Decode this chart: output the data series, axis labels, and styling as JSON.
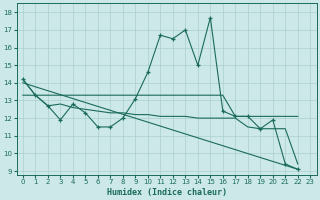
{
  "xlabel": "Humidex (Indice chaleur)",
  "xlim": [
    -0.5,
    23.5
  ],
  "ylim": [
    8.8,
    18.5
  ],
  "yticks": [
    9,
    10,
    11,
    12,
    13,
    14,
    15,
    16,
    17,
    18
  ],
  "xticks": [
    0,
    1,
    2,
    3,
    4,
    5,
    6,
    7,
    8,
    9,
    10,
    11,
    12,
    13,
    14,
    15,
    16,
    17,
    18,
    19,
    20,
    21,
    22,
    23
  ],
  "bg_color": "#cce8e8",
  "grid_color": "#aacfcf",
  "line_color": "#1a6b5a",
  "line1_x": [
    0,
    1,
    2,
    3,
    4,
    5,
    6,
    7,
    8,
    9,
    10,
    11,
    12,
    13,
    14,
    15,
    16,
    17,
    18,
    19,
    20,
    21,
    22
  ],
  "line1_y": [
    14.2,
    13.3,
    12.7,
    11.9,
    12.8,
    12.3,
    11.5,
    11.5,
    12.0,
    13.1,
    14.6,
    16.7,
    16.5,
    17.0,
    15.0,
    17.7,
    12.4,
    12.1,
    12.1,
    11.4,
    11.9,
    9.4,
    9.1
  ],
  "line2_x": [
    0,
    1,
    2,
    3,
    4,
    5,
    6,
    7,
    8,
    9,
    10,
    11,
    12,
    13,
    14,
    15,
    16,
    17,
    18,
    19,
    20,
    21,
    22
  ],
  "line2_y": [
    14.2,
    13.3,
    13.3,
    13.3,
    13.3,
    13.3,
    13.3,
    13.3,
    13.3,
    13.3,
    13.3,
    13.3,
    13.3,
    13.3,
    13.3,
    13.3,
    13.3,
    12.1,
    12.1,
    12.1,
    12.1,
    12.1,
    12.1
  ],
  "line3_x": [
    0,
    1,
    2,
    3,
    4,
    5,
    6,
    7,
    8,
    9,
    10,
    11,
    12,
    13,
    14,
    15,
    16,
    17,
    18,
    19,
    20,
    21,
    22
  ],
  "line3_y": [
    13.3,
    13.3,
    12.7,
    12.8,
    12.6,
    12.5,
    12.4,
    12.3,
    12.3,
    12.2,
    12.2,
    12.1,
    12.1,
    12.1,
    12.0,
    12.0,
    12.0,
    12.0,
    11.5,
    11.4,
    11.4,
    11.4,
    9.4
  ],
  "line4_x": [
    0,
    22
  ],
  "line4_y": [
    14.0,
    9.1
  ]
}
